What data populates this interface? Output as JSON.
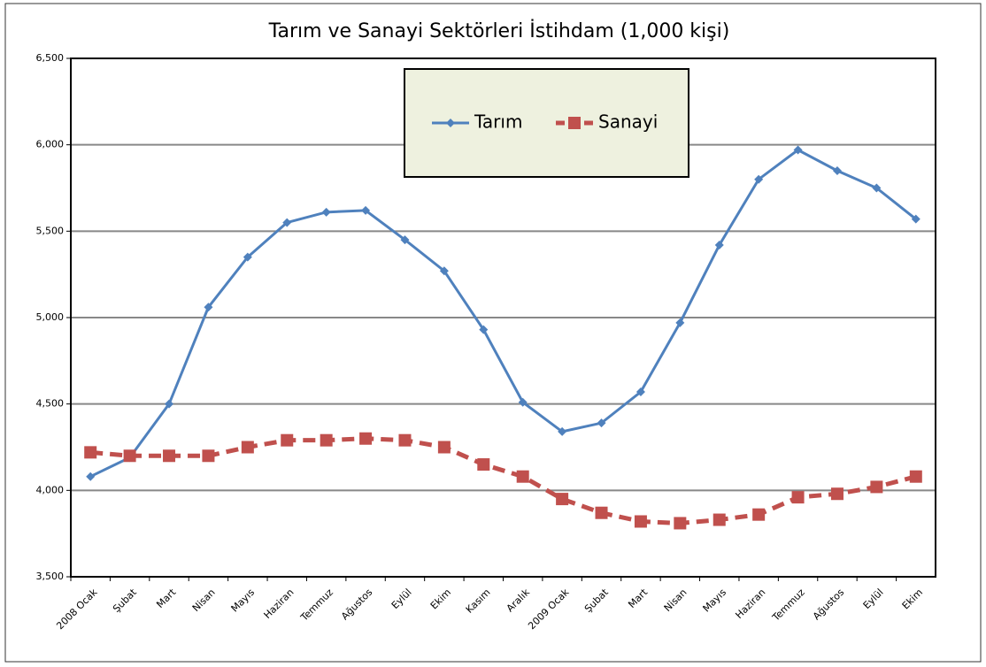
{
  "chart_data": {
    "type": "line",
    "title": "Tarım ve Sanayi Sektörleri İstihdam (1,000 kişi)",
    "categories": [
      "2008 Ocak",
      "Şubat",
      "Mart",
      "Nisan",
      "Mayıs",
      "Haziran",
      "Temmuz",
      "Ağustos",
      "Eylül",
      "Ekim",
      "Kasım",
      "Aralık",
      "2009 Ocak",
      "Şubat",
      "Mart",
      "Nisan",
      "Mayıs",
      "Haziran",
      "Temmuz",
      "Ağustos",
      "Eylül",
      "Ekim"
    ],
    "series": [
      {
        "name": "Tarım",
        "color": "#4f81bd",
        "marker": "diamond",
        "dashed": false,
        "values": [
          4080,
          4190,
          4500,
          5060,
          5350,
          5550,
          5610,
          5620,
          5450,
          5270,
          4930,
          4510,
          4340,
          4390,
          4570,
          4970,
          5420,
          5800,
          5970,
          5850,
          5750,
          5570
        ]
      },
      {
        "name": "Sanayi",
        "color": "#c0504d",
        "marker": "square",
        "dashed": true,
        "values": [
          4220,
          4200,
          4200,
          4200,
          4250,
          4290,
          4290,
          4300,
          4290,
          4250,
          4150,
          4080,
          3950,
          3870,
          3820,
          3810,
          3830,
          3860,
          3960,
          3980,
          4020,
          4080
        ]
      }
    ],
    "ylim": [
      3500,
      6500
    ],
    "yticks": [
      {
        "value": 3500,
        "label": "3,500"
      },
      {
        "value": 4000,
        "label": "4,000"
      },
      {
        "value": 4500,
        "label": "4,500"
      },
      {
        "value": 5000,
        "label": "5,000"
      },
      {
        "value": 5500,
        "label": "5,500"
      },
      {
        "value": 6000,
        "label": "6,000"
      },
      {
        "value": 6500,
        "label": "6,500"
      }
    ],
    "grid": true,
    "legend": "top"
  }
}
